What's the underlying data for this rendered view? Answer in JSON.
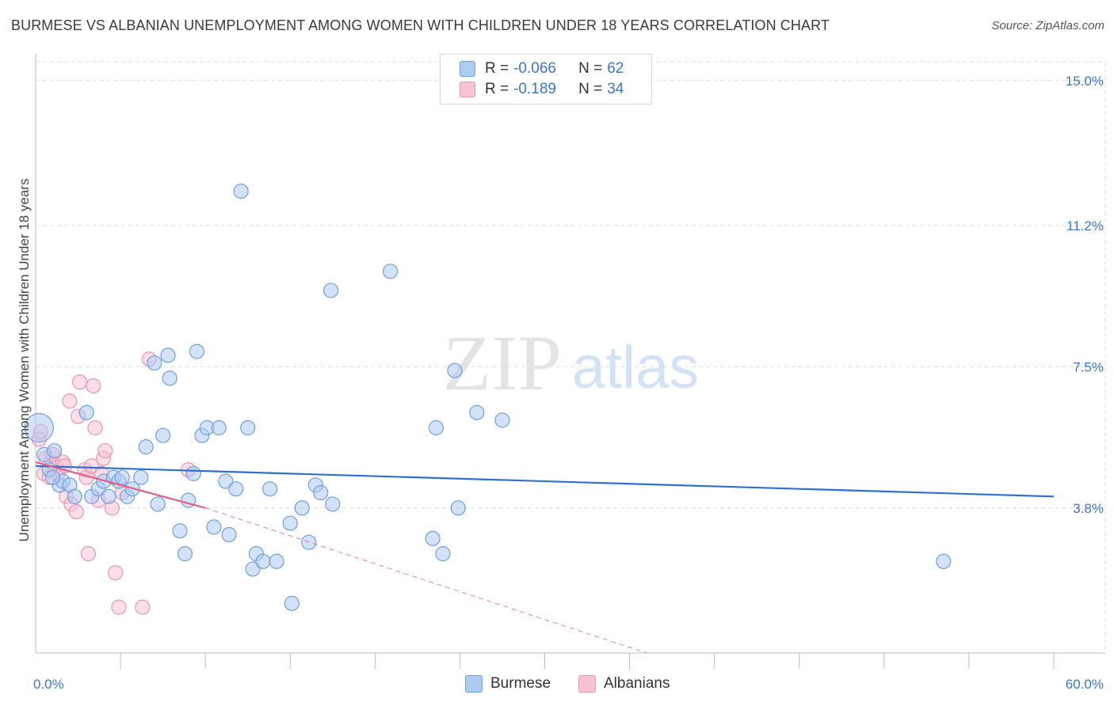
{
  "title": "BURMESE VS ALBANIAN UNEMPLOYMENT AMONG WOMEN WITH CHILDREN UNDER 18 YEARS CORRELATION CHART",
  "source": "Source: ZipAtlas.com",
  "watermark": {
    "zip": "ZIP",
    "atlas": "atlas"
  },
  "legend": {
    "rows": [
      {
        "r_label": "R =",
        "r_value": "-0.066",
        "n_label": "N =",
        "n_value": "62"
      },
      {
        "r_label": "R =",
        "r_value": "-0.189",
        "n_label": "N =",
        "n_value": "34"
      }
    ]
  },
  "bottom_legend": [
    "Burmese",
    "Albanians"
  ],
  "colors": {
    "burmese_fill": "#aecbf0",
    "burmese_stroke": "#6f9fdc",
    "burmese_line": "#2f6fd0",
    "albanian_fill": "#f7c3d3",
    "albanian_stroke": "#e896b0",
    "albanian_line": "#e0608a",
    "tick_text": "#3a74d0",
    "grid": "#dddddd"
  },
  "chart_data": {
    "type": "scatter",
    "title": "BURMESE VS ALBANIAN UNEMPLOYMENT AMONG WOMEN WITH CHILDREN UNDER 18 YEARS CORRELATION CHART",
    "xlabel": "",
    "ylabel": "Unemployment Among Women with Children Under 18 years",
    "xlim": [
      0,
      60
    ],
    "ylim": [
      0,
      15.7
    ],
    "x_tick_labels": [
      "0.0%",
      "60.0%"
    ],
    "y_ticks": [
      3.8,
      7.5,
      11.2,
      15.0
    ],
    "y_tick_labels": [
      "3.8%",
      "7.5%",
      "11.2%",
      "15.0%"
    ],
    "series": [
      {
        "name": "Burmese",
        "R": -0.066,
        "N": 62,
        "trend": {
          "x": [
            0,
            60
          ],
          "y": [
            4.9,
            4.1
          ]
        },
        "points": [
          {
            "x": 0.2,
            "y": 5.9,
            "big": true
          },
          {
            "x": 0.5,
            "y": 5.2
          },
          {
            "x": 1.1,
            "y": 5.3
          },
          {
            "x": 0.8,
            "y": 4.8
          },
          {
            "x": 1.4,
            "y": 4.4
          },
          {
            "x": 1.6,
            "y": 4.5
          },
          {
            "x": 2.0,
            "y": 4.4
          },
          {
            "x": 2.3,
            "y": 4.1
          },
          {
            "x": 3.0,
            "y": 6.3
          },
          {
            "x": 3.3,
            "y": 4.1
          },
          {
            "x": 3.7,
            "y": 4.3
          },
          {
            "x": 4.0,
            "y": 4.5
          },
          {
            "x": 4.3,
            "y": 4.1
          },
          {
            "x": 4.6,
            "y": 4.6
          },
          {
            "x": 4.9,
            "y": 4.5
          },
          {
            "x": 5.1,
            "y": 4.6
          },
          {
            "x": 5.4,
            "y": 4.1
          },
          {
            "x": 5.7,
            "y": 4.3
          },
          {
            "x": 6.2,
            "y": 4.6
          },
          {
            "x": 6.5,
            "y": 5.4
          },
          {
            "x": 7.0,
            "y": 7.6
          },
          {
            "x": 7.2,
            "y": 3.9
          },
          {
            "x": 7.5,
            "y": 5.7
          },
          {
            "x": 7.8,
            "y": 7.8
          },
          {
            "x": 7.9,
            "y": 7.2
          },
          {
            "x": 8.5,
            "y": 3.2
          },
          {
            "x": 8.8,
            "y": 2.6
          },
          {
            "x": 9.0,
            "y": 4.0
          },
          {
            "x": 9.3,
            "y": 4.7
          },
          {
            "x": 9.5,
            "y": 7.9
          },
          {
            "x": 9.8,
            "y": 5.7
          },
          {
            "x": 10.1,
            "y": 5.9
          },
          {
            "x": 10.5,
            "y": 3.3
          },
          {
            "x": 10.8,
            "y": 5.9
          },
          {
            "x": 11.2,
            "y": 4.5
          },
          {
            "x": 11.4,
            "y": 3.1
          },
          {
            "x": 11.8,
            "y": 4.3
          },
          {
            "x": 12.1,
            "y": 12.1
          },
          {
            "x": 12.5,
            "y": 5.9
          },
          {
            "x": 12.8,
            "y": 2.2
          },
          {
            "x": 13.0,
            "y": 2.6
          },
          {
            "x": 13.4,
            "y": 2.4
          },
          {
            "x": 13.8,
            "y": 4.3
          },
          {
            "x": 14.2,
            "y": 2.4
          },
          {
            "x": 15.0,
            "y": 3.4
          },
          {
            "x": 15.1,
            "y": 1.3
          },
          {
            "x": 15.7,
            "y": 3.8
          },
          {
            "x": 16.1,
            "y": 2.9
          },
          {
            "x": 16.5,
            "y": 4.4
          },
          {
            "x": 16.8,
            "y": 4.2
          },
          {
            "x": 17.5,
            "y": 3.9
          },
          {
            "x": 17.4,
            "y": 9.5
          },
          {
            "x": 20.9,
            "y": 10.0
          },
          {
            "x": 23.4,
            "y": 3.0
          },
          {
            "x": 23.6,
            "y": 5.9
          },
          {
            "x": 24.0,
            "y": 2.6
          },
          {
            "x": 24.7,
            "y": 7.4
          },
          {
            "x": 24.9,
            "y": 3.8
          },
          {
            "x": 26.0,
            "y": 6.3
          },
          {
            "x": 27.5,
            "y": 6.1
          },
          {
            "x": 53.5,
            "y": 2.4
          },
          {
            "x": 1.0,
            "y": 4.6
          }
        ]
      },
      {
        "name": "Albanians",
        "R": -0.189,
        "N": 34,
        "trend": {
          "x": [
            0,
            10
          ],
          "y": [
            5.0,
            3.8
          ]
        },
        "trend_dashed": {
          "x": [
            10,
            36
          ],
          "y": [
            3.8,
            0.0
          ]
        },
        "points": [
          {
            "x": 0.2,
            "y": 5.6
          },
          {
            "x": 0.3,
            "y": 5.8
          },
          {
            "x": 0.5,
            "y": 4.7
          },
          {
            "x": 0.6,
            "y": 5.1
          },
          {
            "x": 0.8,
            "y": 4.6
          },
          {
            "x": 0.9,
            "y": 5.0
          },
          {
            "x": 1.2,
            "y": 4.9
          },
          {
            "x": 1.3,
            "y": 4.7
          },
          {
            "x": 1.6,
            "y": 5.0
          },
          {
            "x": 1.7,
            "y": 4.9
          },
          {
            "x": 1.8,
            "y": 4.1
          },
          {
            "x": 2.0,
            "y": 6.6
          },
          {
            "x": 2.1,
            "y": 3.9
          },
          {
            "x": 2.4,
            "y": 3.7
          },
          {
            "x": 2.5,
            "y": 6.2
          },
          {
            "x": 2.6,
            "y": 7.1
          },
          {
            "x": 2.9,
            "y": 4.8
          },
          {
            "x": 3.0,
            "y": 4.6
          },
          {
            "x": 3.1,
            "y": 2.6
          },
          {
            "x": 3.3,
            "y": 4.9
          },
          {
            "x": 3.4,
            "y": 7.0
          },
          {
            "x": 3.5,
            "y": 5.9
          },
          {
            "x": 3.7,
            "y": 4.0
          },
          {
            "x": 3.9,
            "y": 4.7
          },
          {
            "x": 4.0,
            "y": 5.1
          },
          {
            "x": 4.1,
            "y": 5.3
          },
          {
            "x": 4.5,
            "y": 3.8
          },
          {
            "x": 4.7,
            "y": 2.1
          },
          {
            "x": 4.9,
            "y": 1.2
          },
          {
            "x": 5.1,
            "y": 4.2
          },
          {
            "x": 6.3,
            "y": 1.2
          },
          {
            "x": 6.7,
            "y": 7.7
          },
          {
            "x": 9.0,
            "y": 4.8
          },
          {
            "x": 1.0,
            "y": 5.2
          }
        ]
      }
    ]
  }
}
